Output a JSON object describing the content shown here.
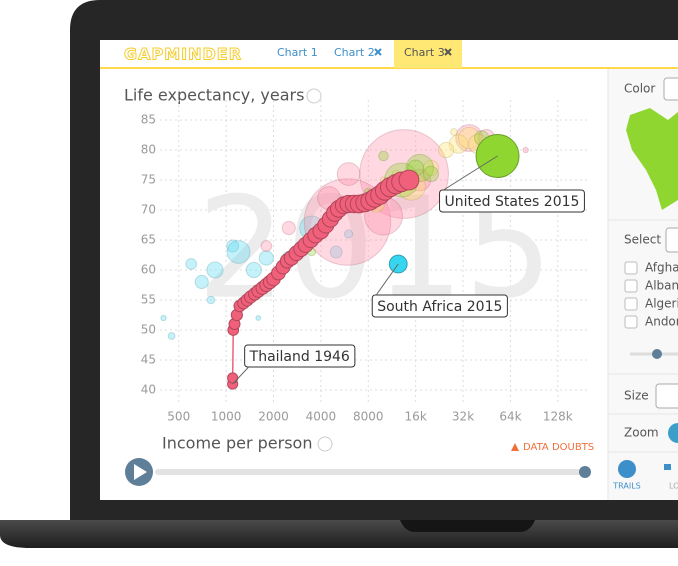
{
  "app": {
    "logo": "GAPMINDER",
    "tabs": [
      "Chart 1",
      "Chart 2",
      "Chart 3"
    ],
    "data_doubts": "DATA DOUBTS",
    "panel": {
      "color": "Color",
      "select": "Select",
      "countries": [
        "Afghan",
        "Albani",
        "Algeria",
        "Andorra"
      ],
      "size": "Size",
      "zoom": "Zoom",
      "buttons": [
        "TRAILS",
        "LOCK"
      ]
    }
  },
  "chart_data": {
    "type": "scatter",
    "year": "2015",
    "y_label": "Life expectancy, years",
    "x_label": "Income per person",
    "x_log": true,
    "grid": true,
    "xlim": [
      380,
      205000
    ],
    "ylim": [
      38,
      87
    ],
    "xticks": [
      500,
      1000,
      2000,
      4000,
      8000,
      {
        "value": 16000,
        "label": "16k"
      },
      {
        "value": 32000,
        "label": "32k"
      },
      {
        "value": 64000,
        "label": "64k"
      },
      {
        "value": 128000,
        "label": "128k"
      }
    ],
    "yticks": [
      40,
      45,
      50,
      55,
      60,
      65,
      70,
      75,
      80,
      85
    ],
    "series": [
      {
        "color": "#5ad9f0",
        "x": [
          600,
          700,
          850,
          1100,
          1200,
          1500,
          1800,
          2500,
          3000,
          5000,
          6000,
          400,
          450,
          1600,
          9000,
          800,
          3500
        ],
        "values": [
          61,
          58,
          60,
          64,
          63,
          60,
          62,
          62,
          64,
          63,
          66,
          52,
          49,
          52,
          72,
          55,
          67
        ],
        "sizes": [
          20,
          30,
          45,
          25,
          90,
          40,
          35,
          30,
          20,
          25,
          12,
          5,
          8,
          4,
          40,
          10,
          100
        ]
      },
      {
        "color": "#ff8fa8",
        "x": [
          13500,
          5900,
          10000,
          4500,
          6000,
          2500,
          1800,
          17000,
          35000,
          45000,
          60000,
          80000
        ],
        "values": [
          76,
          68,
          69,
          72,
          76,
          67,
          64,
          75,
          82,
          82,
          78,
          80
        ],
        "sizes": [
          1370,
          1300,
          250,
          90,
          90,
          30,
          20,
          80,
          125,
          50,
          30,
          5
        ]
      },
      {
        "color": "#ffe36b",
        "x": [
          30000,
          35000,
          40000,
          25000,
          20000,
          15000,
          12000,
          28000,
          50000,
          45000,
          10000,
          9000
        ],
        "values": [
          81,
          82,
          81,
          80,
          77,
          74,
          76,
          83,
          82,
          81,
          75,
          71
        ],
        "sizes": [
          60,
          80,
          65,
          40,
          40,
          140,
          10,
          8,
          5,
          17,
          7,
          45
        ]
      },
      {
        "color": "#8fd630",
        "x": [
          13000,
          17000,
          20000,
          12000,
          8000,
          3500,
          42000,
          10000,
          16000
        ],
        "values": [
          75,
          77,
          76,
          74,
          73,
          63,
          82,
          79,
          77
        ],
        "sizes": [
          200,
          130,
          40,
          30,
          10,
          10,
          36,
          16,
          45
        ]
      },
      {
        "name": "Thailand 1946",
        "color": "#f0607a",
        "x": [
          1100,
          1100,
          1110,
          1130,
          1170,
          1220,
          1290,
          1360,
          1430,
          1520,
          1600,
          1700,
          1800,
          1900,
          2000,
          2150,
          2300,
          2450,
          2600,
          2800,
          3000,
          3200,
          3450,
          3700,
          4000,
          4300,
          4600,
          4900,
          5200,
          5600,
          6000,
          6500,
          7000,
          7600,
          8200,
          8800,
          9500,
          10200,
          11000,
          12000,
          13000,
          14500
        ],
        "values": [
          41,
          42,
          50,
          51,
          52.5,
          54,
          54.5,
          55,
          55.5,
          56,
          56.5,
          57,
          57.5,
          58,
          58.5,
          59.5,
          60.5,
          61.5,
          62,
          62.8,
          63.5,
          64.2,
          65,
          65.8,
          66.5,
          67.5,
          68.5,
          69.5,
          70.2,
          70.8,
          71,
          71,
          71,
          71.2,
          71.5,
          72,
          72.5,
          73.2,
          73.8,
          74.3,
          74.7,
          75
        ],
        "sizes": [
          18,
          18,
          20,
          21,
          22,
          23,
          24,
          25,
          26,
          27,
          28,
          29,
          30,
          31,
          32,
          33,
          34,
          35,
          36,
          38,
          39,
          40,
          41,
          42,
          44,
          45,
          46,
          48,
          49,
          50,
          52,
          53,
          55,
          56,
          58,
          59,
          61,
          62,
          64,
          65,
          67,
          68
        ]
      },
      {
        "name": "South Africa 2015",
        "color": "#36d6f0",
        "x": [
          12400
        ],
        "values": [
          61
        ],
        "sizes": [
          55
        ]
      },
      {
        "name": "United States 2015",
        "color": "#8fd630",
        "x": [
          53000
        ],
        "values": [
          79
        ],
        "sizes": [
          321
        ]
      }
    ]
  }
}
